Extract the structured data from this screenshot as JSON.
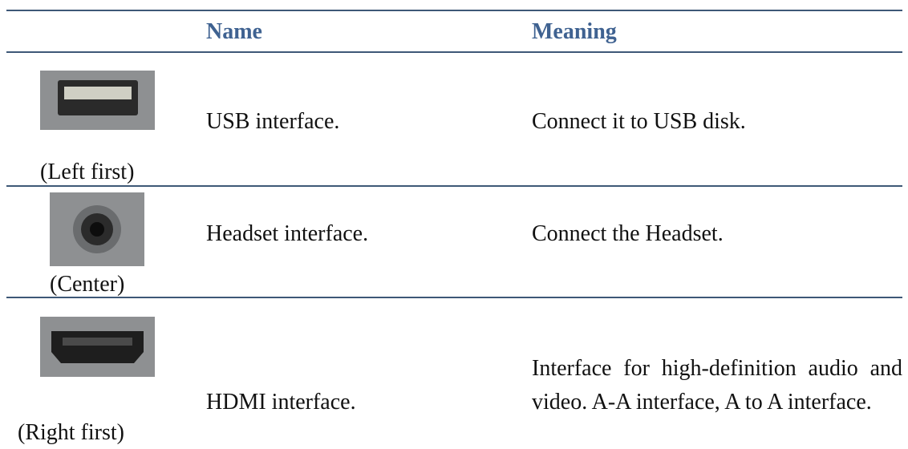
{
  "table": {
    "header": [
      "Name",
      "Meaning"
    ],
    "rows": [
      {
        "caption": "(Left first)",
        "name": "USB interface.",
        "meaning": "Connect it to USB disk."
      },
      {
        "caption": "(Center)",
        "name": "Headset interface.",
        "meaning": "Connect the Headset."
      },
      {
        "caption": "(Right first)",
        "name": "HDMI interface.",
        "meaning": "Interface for high-definition audio and video. A-A interface, A to A interface."
      }
    ]
  }
}
